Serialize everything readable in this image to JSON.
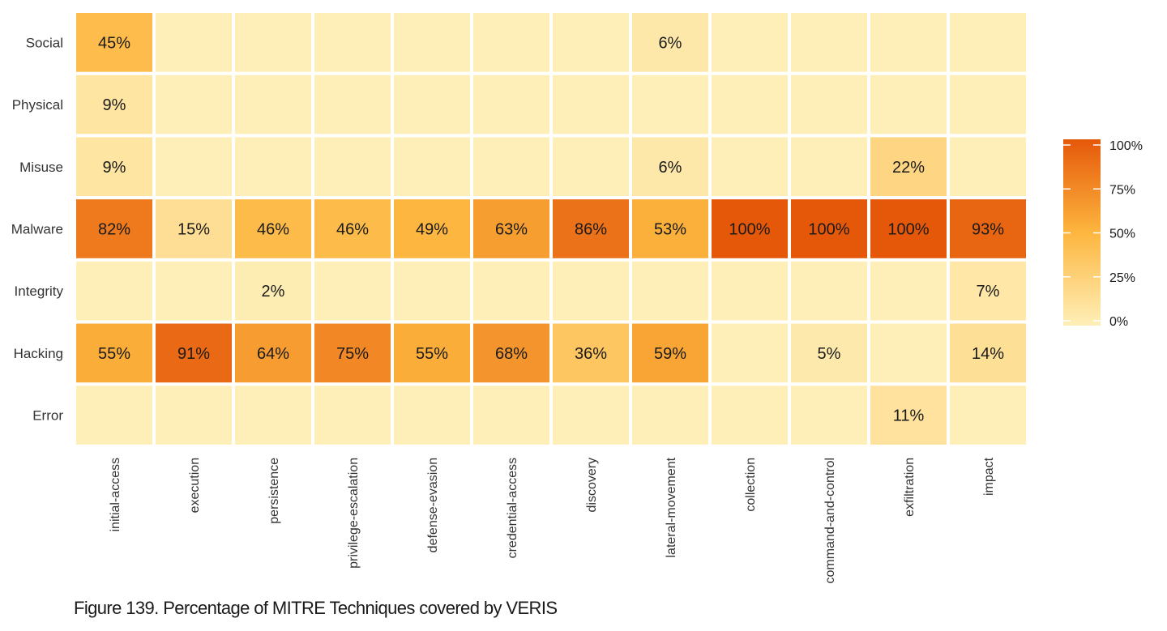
{
  "caption": "Figure 139. Percentage of MITRE Techniques covered by VERIS",
  "colors": {
    "low": "#FEEFB8",
    "mid": "#FDB63F",
    "high": "#E5580A",
    "gap": "#ffffff"
  },
  "chart_data": {
    "type": "heatmap",
    "rows": [
      "Social",
      "Physical",
      "Misuse",
      "Malware",
      "Integrity",
      "Hacking",
      "Error"
    ],
    "columns": [
      "initial-access",
      "execution",
      "persistence",
      "privilege-escalation",
      "defense-evasion",
      "credential-access",
      "discovery",
      "lateral-movement",
      "collection",
      "command-and-control",
      "exfiltration",
      "impact"
    ],
    "values": [
      [
        45,
        0,
        0,
        0,
        0,
        0,
        0,
        6,
        0,
        0,
        0,
        0
      ],
      [
        9,
        0,
        0,
        0,
        0,
        0,
        0,
        0,
        0,
        0,
        0,
        0
      ],
      [
        9,
        0,
        0,
        0,
        0,
        0,
        0,
        6,
        0,
        0,
        22,
        0
      ],
      [
        82,
        15,
        46,
        46,
        49,
        63,
        86,
        53,
        100,
        100,
        100,
        93
      ],
      [
        0,
        0,
        2,
        0,
        0,
        0,
        0,
        0,
        0,
        0,
        0,
        7
      ],
      [
        55,
        91,
        64,
        75,
        55,
        68,
        36,
        59,
        0,
        5,
        0,
        14
      ],
      [
        0,
        0,
        0,
        0,
        0,
        0,
        0,
        0,
        0,
        0,
        11,
        0
      ]
    ],
    "cell_labels": [
      [
        "45%",
        "",
        "",
        "",
        "",
        "",
        "",
        "6%",
        "",
        "",
        "",
        ""
      ],
      [
        "9%",
        "",
        "",
        "",
        "",
        "",
        "",
        "",
        "",
        "",
        "",
        ""
      ],
      [
        "9%",
        "",
        "",
        "",
        "",
        "",
        "",
        "6%",
        "",
        "",
        "22%",
        ""
      ],
      [
        "82%",
        "15%",
        "46%",
        "46%",
        "49%",
        "63%",
        "86%",
        "53%",
        "100%",
        "100%",
        "100%",
        "93%"
      ],
      [
        "",
        "",
        "2%",
        "",
        "",
        "",
        "",
        "",
        "",
        "",
        "",
        "7%"
      ],
      [
        "55%",
        "91%",
        "64%",
        "75%",
        "55%",
        "68%",
        "36%",
        "59%",
        "",
        "5%",
        "",
        "14%"
      ],
      [
        "",
        "",
        "",
        "",
        "",
        "",
        "",
        "",
        "",
        "",
        "11%",
        ""
      ]
    ],
    "value_range": [
      0,
      100
    ],
    "legend": {
      "position": "right",
      "ticks": [
        100,
        75,
        50,
        25,
        0
      ],
      "tick_labels": [
        "100%",
        "75%",
        "50%",
        "25%",
        "0%"
      ]
    }
  }
}
